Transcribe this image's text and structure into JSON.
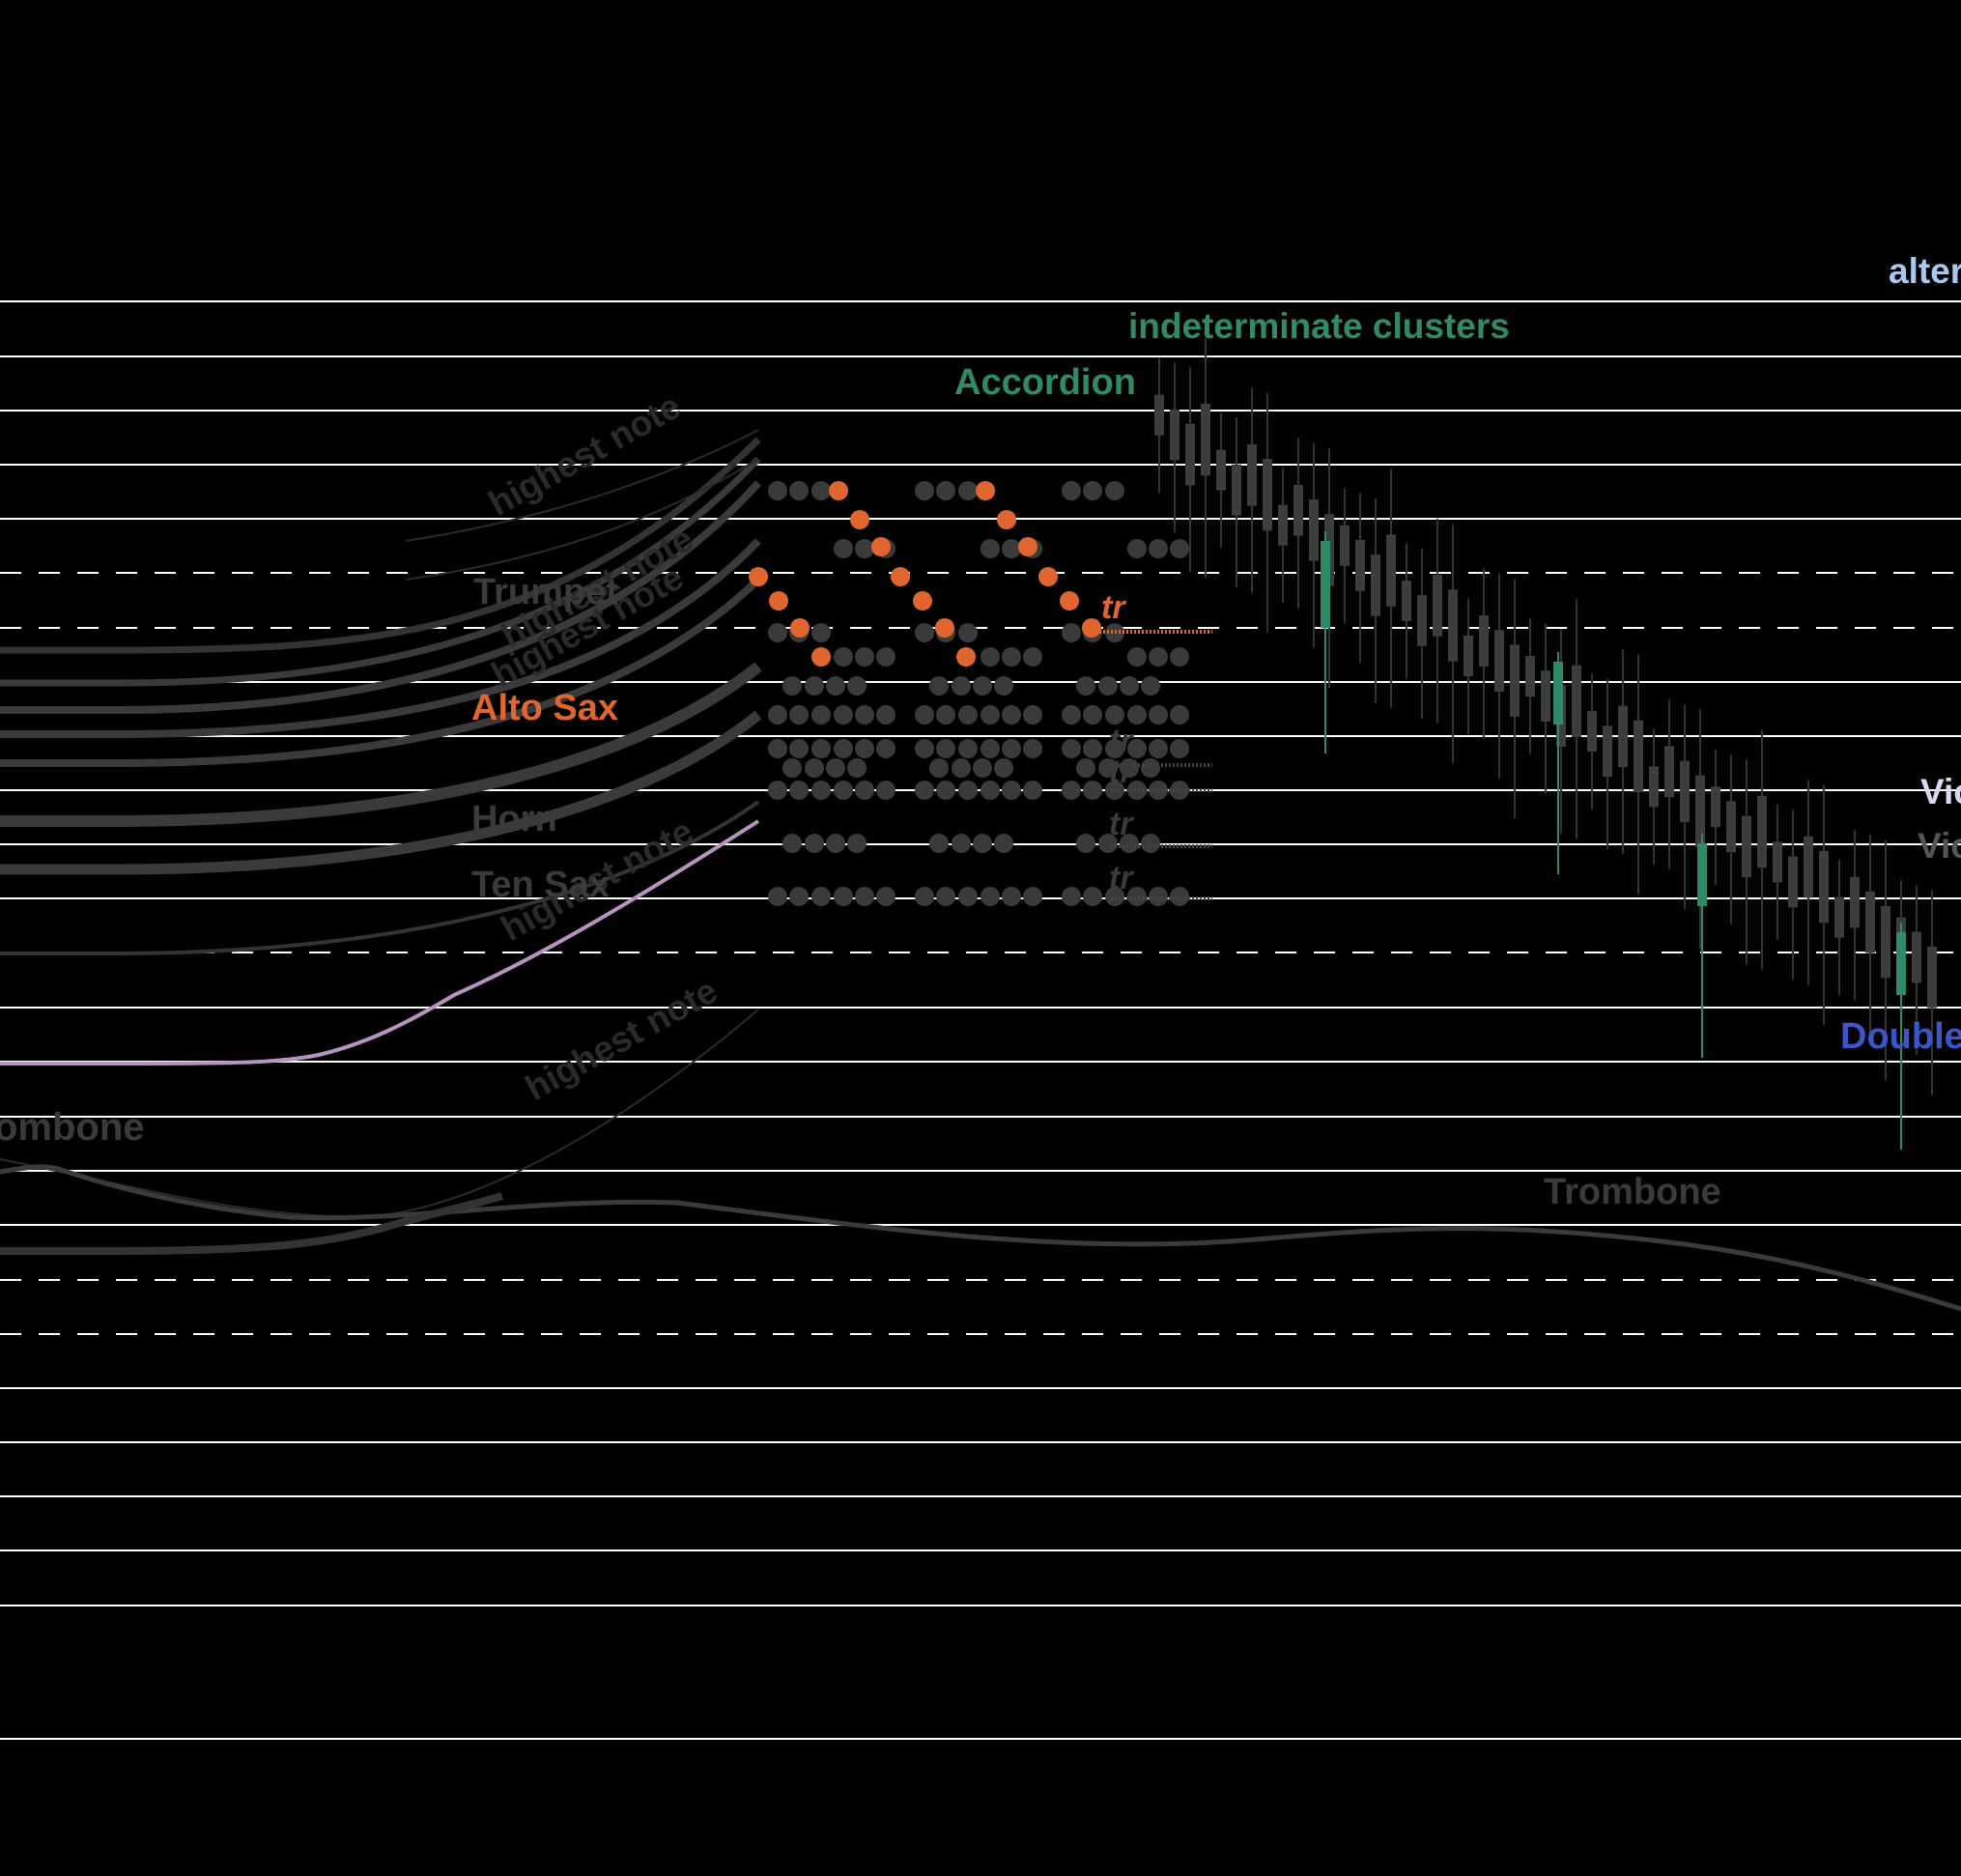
{
  "labels": {
    "alter": "alter",
    "indeterminate": "indeterminate clusters",
    "accordion": "Accordion",
    "highest_note_1": "highest note",
    "highest_note_2": "highest note",
    "highest_note_3": "highest note",
    "highest_note_4": "highest note",
    "highest_note_5": "highest note",
    "trumpet": "Trumpet",
    "alto_sax": "Alto Sax",
    "horn": "Horn",
    "ten_sax": "Ten Sax",
    "trombone_left": "ombone",
    "trombone_right": "Trombone",
    "vio1": "Vio",
    "vio2": "Vio",
    "double": "Double",
    "tr": "tr"
  },
  "colors": {
    "background": "#000000",
    "staff_line": "#ffffff",
    "green": "#2f8a66",
    "orange": "#e0652f",
    "lilac": "#b594c0",
    "gray_dark": "#3a3a3a",
    "gray_mid": "#555555",
    "pale_blue": "#a9c8f0",
    "pale_lavender": "#d8d8f0",
    "royal_blue": "#3c55c8"
  }
}
